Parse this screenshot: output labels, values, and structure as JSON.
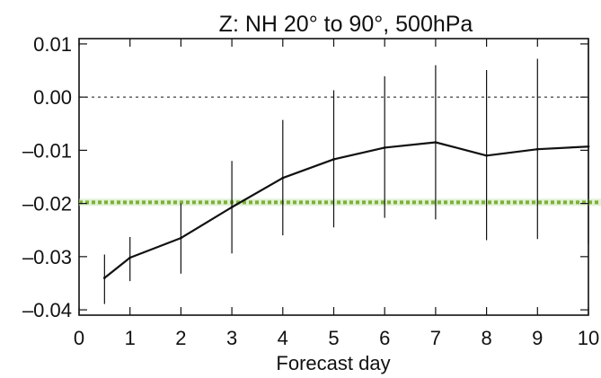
{
  "chart_data": {
    "type": "line",
    "title": "Z: NH 20° to 90°, 500hPa",
    "xlabel": "Forecast day",
    "ylabel": "",
    "xlim": [
      0,
      10
    ],
    "ylim": [
      -0.041,
      0.011
    ],
    "x_ticks": [
      0,
      1,
      2,
      3,
      4,
      5,
      6,
      7,
      8,
      9,
      10
    ],
    "x_tick_labels": [
      "0",
      "1",
      "2",
      "3",
      "4",
      "5",
      "6",
      "7",
      "8",
      "9",
      "10"
    ],
    "y_ticks": [
      0.01,
      0.0,
      -0.01,
      -0.02,
      -0.03,
      -0.04
    ],
    "y_tick_labels": [
      "0.01",
      "0.00",
      "–0.01",
      "–0.02",
      "–0.03",
      "–0.04"
    ],
    "series": [
      {
        "x": [
          0.5,
          1,
          2,
          3,
          4,
          5,
          6,
          7,
          8,
          9,
          10
        ],
        "values": [
          -0.034,
          -0.0302,
          -0.0265,
          -0.0207,
          -0.0152,
          -0.0117,
          -0.0095,
          -0.0085,
          -0.011,
          -0.0098,
          -0.0093
        ],
        "error_low": [
          -0.0389,
          -0.0346,
          -0.0332,
          -0.0294,
          -0.026,
          -0.0245,
          -0.0227,
          -0.023,
          -0.0269,
          -0.0267,
          -0.0277
        ],
        "error_high": [
          -0.0296,
          -0.0263,
          -0.02,
          -0.012,
          -0.0043,
          0.0013,
          0.0039,
          0.006,
          0.0051,
          0.0072,
          0.0094
        ],
        "color": "#111111"
      }
    ],
    "reference_line": {
      "y": -0.0198,
      "color": "#7fb03a"
    },
    "zero_line": {
      "y": 0.0,
      "style": "dashed"
    },
    "grid": false
  }
}
